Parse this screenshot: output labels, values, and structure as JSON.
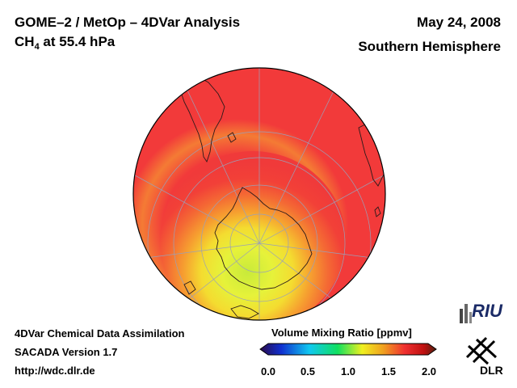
{
  "header": {
    "title_left": "GOME–2 / MetOp – 4DVar Analysis",
    "species": "CH",
    "species_subscript": "4",
    "level": " at 55.4 hPa",
    "date": "May 24, 2008",
    "region": "Southern Hemisphere"
  },
  "footer": {
    "line1": "4DVar Chemical Data Assimilation",
    "line2": "SACADA Version 1.7",
    "url": "http://wdc.dlr.de"
  },
  "colorbar": {
    "title": "Volume Mixing Ratio [ppmv]",
    "ticks": [
      "0.0",
      "0.5",
      "1.0",
      "1.5",
      "2.0"
    ],
    "stops": [
      "#2a0a4a",
      "#1030d0",
      "#10c8f0",
      "#10e060",
      "#f0f020",
      "#f0a020",
      "#f03030",
      "#c01010",
      "#502010"
    ]
  },
  "logos": {
    "riu": "RIU",
    "dlr": "DLR"
  },
  "map": {
    "projection": "orthographic-south-polar",
    "colors": {
      "background": "#f23a3a",
      "mid": "#f46a30",
      "inner": "#f7b02a",
      "core": "#eef03a",
      "center": "#c8ea3a"
    }
  }
}
